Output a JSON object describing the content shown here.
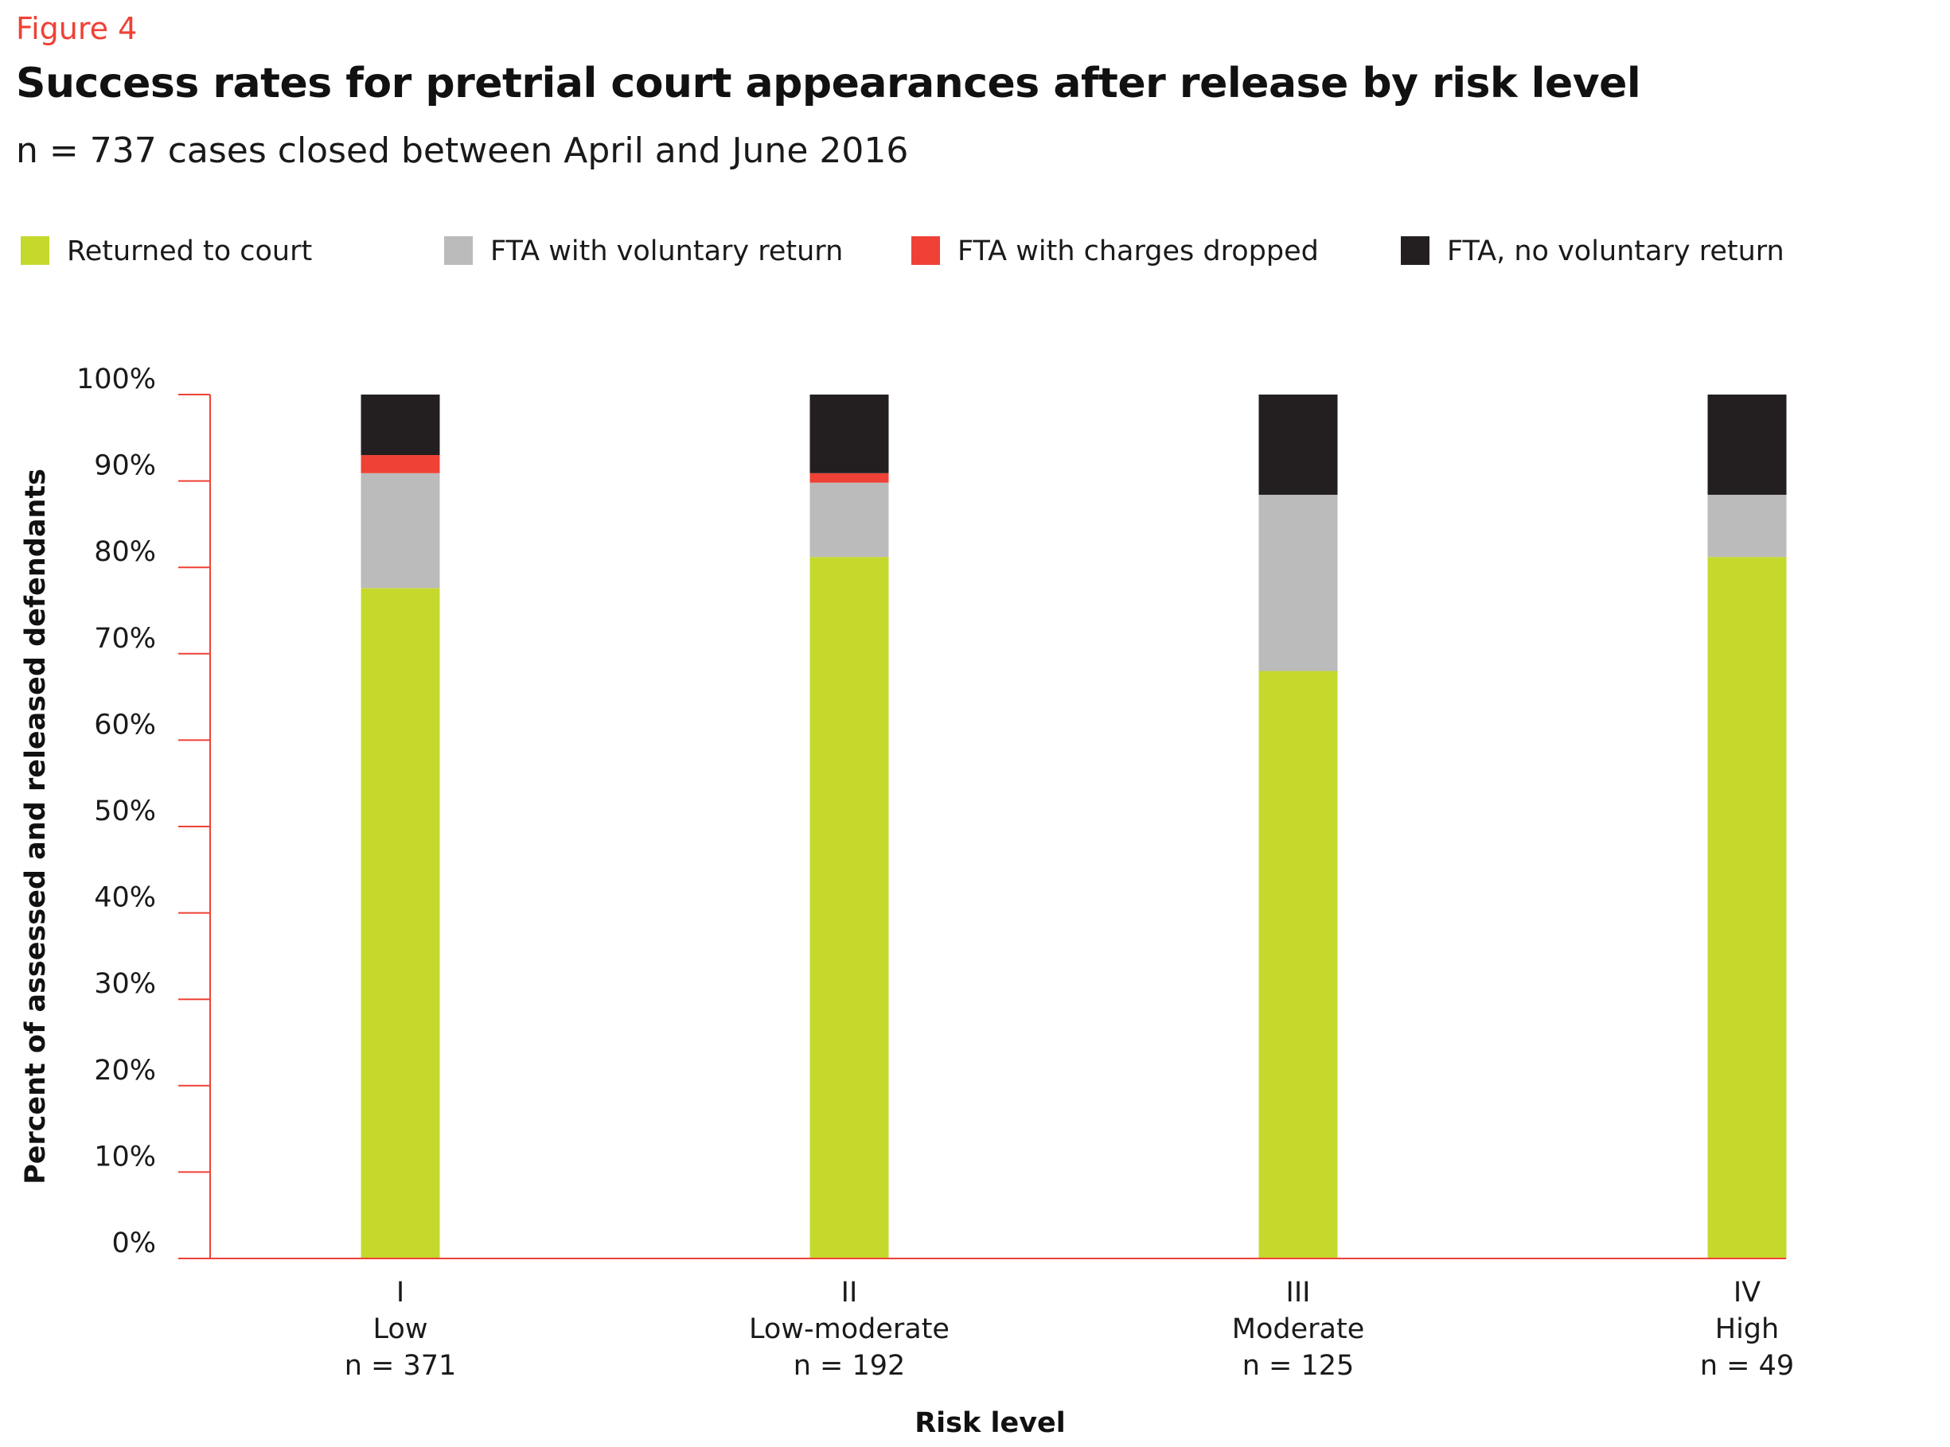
{
  "figure_label": "Figure 4",
  "title": "Success rates for pretrial court appearances after release by risk level",
  "subtitle": "n = 737 cases closed between April and June 2016",
  "colors": {
    "returned": "#c5d92d",
    "voluntary": "#bbbbbb",
    "dropped": "#ef4136",
    "no_return": "#231f20",
    "axis": "#ef4136",
    "text": "#1a1a1a"
  },
  "chart_data": {
    "type": "bar",
    "stacked": true,
    "title": "Success rates for pretrial court appearances after release by risk level",
    "subtitle": "n = 737 cases closed between April and June 2016",
    "xlabel": "Risk level",
    "ylabel": "Percent of assessed and released defendants",
    "ylim": [
      0,
      100
    ],
    "yticks": [
      0,
      10,
      20,
      30,
      40,
      50,
      60,
      70,
      80,
      90,
      100
    ],
    "ytick_labels": [
      "0%",
      "10%",
      "20%",
      "30%",
      "40%",
      "50%",
      "60%",
      "70%",
      "80%",
      "90%",
      "100%"
    ],
    "legend_position": "top",
    "grid": false,
    "categories": [
      {
        "level": "I",
        "name": "Low",
        "n": "n = 371"
      },
      {
        "level": "II",
        "name": "Low-moderate",
        "n": "n = 192"
      },
      {
        "level": "III",
        "name": "Moderate",
        "n": "n = 125"
      },
      {
        "level": "IV",
        "name": "High",
        "n": "n = 49"
      }
    ],
    "series": [
      {
        "key": "returned",
        "name": "Returned to court",
        "values": [
          77.6,
          81.2,
          68.0,
          81.2
        ]
      },
      {
        "key": "voluntary",
        "name": "FTA with voluntary return",
        "values": [
          13.3,
          8.6,
          20.4,
          7.2
        ]
      },
      {
        "key": "dropped",
        "name": "FTA with charges dropped",
        "values": [
          2.1,
          1.1,
          0,
          0
        ]
      },
      {
        "key": "no_return",
        "name": "FTA, no voluntary return",
        "values": [
          7.0,
          9.1,
          11.6,
          11.6
        ]
      }
    ]
  }
}
